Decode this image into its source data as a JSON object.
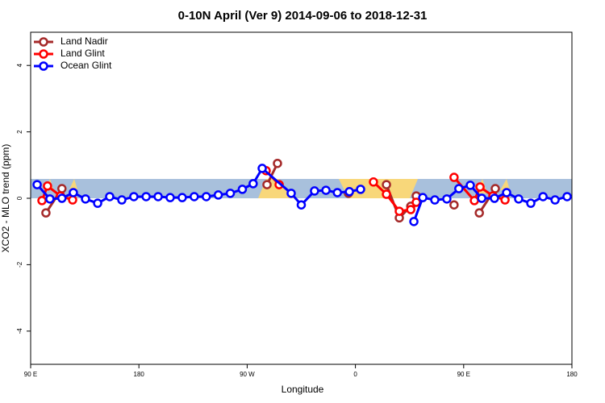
{
  "chart_data": {
    "type": "line",
    "title": "0-10N April (Ver 9)   2014-09-06 to 2018-12-31",
    "x_label": "Longitude",
    "y_label": "XCO2 - MLO trend (ppm)",
    "xlim": [
      90,
      540
    ],
    "xticks": [
      {
        "value": 90,
        "label": "90 E"
      },
      {
        "value": 180,
        "label": "180"
      },
      {
        "value": 270,
        "label": "90 W"
      },
      {
        "value": 360,
        "label": "0"
      },
      {
        "value": 450,
        "label": "90 E"
      },
      {
        "value": 540,
        "label": "180"
      }
    ],
    "ylim": [
      -5,
      5
    ],
    "yticks": [
      -4,
      -2,
      0,
      2,
      4
    ],
    "legend": "top-left",
    "series": [
      {
        "name": "Land Nadir",
        "color": "#a52a2a",
        "x": [
          102.7,
          116,
          null,
          286.5,
          295.2,
          null,
          354.2,
          null,
          385.8,
          396.5,
          406,
          410.6,
          null,
          442,
          null,
          463,
          476.3
        ],
        "values": [
          -0.44,
          0.29,
          null,
          0.41,
          1.05,
          null,
          0.15,
          null,
          0.41,
          -0.59,
          -0.24,
          0.07,
          null,
          -0.2,
          null,
          -0.44,
          0.29
        ]
      },
      {
        "name": "Land Glint",
        "color": "#ff0000",
        "x": [
          99.4,
          104,
          114.8,
          124.9,
          null,
          285.8,
          296.6,
          null,
          375,
          385.8,
          396.5,
          406,
          410.6,
          null,
          442,
          458.9,
          463.6,
          474.3,
          484.4
        ],
        "values": [
          -0.07,
          0.37,
          0.07,
          -0.05,
          null,
          0.83,
          0.41,
          null,
          0.49,
          0.12,
          -0.39,
          -0.34,
          -0.12,
          null,
          0.63,
          -0.07,
          0.34,
          0.07,
          -0.05
        ]
      },
      {
        "name": "Ocean Glint",
        "color": "#0000ff",
        "x": [
          95.4,
          106,
          116,
          125.5,
          135.6,
          145.7,
          155.7,
          165.8,
          175.8,
          186,
          196,
          206,
          216,
          226,
          236,
          246,
          256,
          266,
          275,
          282.5,
          306.6,
          315,
          326,
          335.5,
          345,
          355,
          364.3,
          null,
          408.6,
          416,
          426,
          436,
          446,
          455.5,
          465,
          475.6,
          485.7,
          495.7,
          505.8,
          516,
          526,
          536
        ],
        "values": [
          0.41,
          -0.02,
          0.0,
          0.17,
          -0.02,
          -0.15,
          0.05,
          -0.05,
          0.05,
          0.05,
          0.05,
          0.02,
          0.02,
          0.05,
          0.05,
          0.1,
          0.15,
          0.27,
          0.44,
          0.9,
          0.15,
          -0.2,
          0.22,
          0.24,
          0.17,
          0.2,
          0.27,
          null,
          -0.7,
          0.02,
          -0.05,
          -0.02,
          0.29,
          0.39,
          0.0,
          0.0,
          0.17,
          -0.02,
          -0.15,
          0.05,
          -0.05,
          0.05
        ]
      }
    ]
  }
}
